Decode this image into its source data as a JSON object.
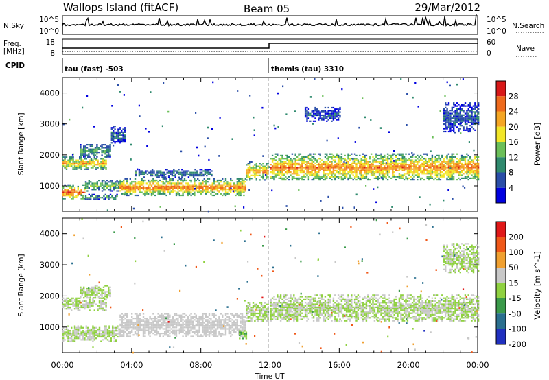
{
  "header": {
    "site": "Wallops Island (fitACF)",
    "beam": "Beam 05",
    "date": "29/Mar/2012"
  },
  "status_panels": {
    "nsky_label": "N.Sky",
    "nsky_ticks": [
      "10^5",
      "10^0"
    ],
    "nsearch_label": "N.Search",
    "nsearch_ticks": [
      "10^5",
      "10^0"
    ],
    "freq_label_1": "Freq.",
    "freq_label_2": "[MHz]",
    "freq_ticks": [
      "18",
      "8"
    ],
    "nave_label": "Nave",
    "nave_ticks": [
      "60",
      "0"
    ],
    "cpid_label": "CPID",
    "cpid_segments": [
      {
        "name": "tau (fast) -503",
        "start_hour": 0
      },
      {
        "name": "themis (tau) 3310",
        "start_hour": 12
      }
    ]
  },
  "chart_data": [
    {
      "type": "heatmap",
      "title": "",
      "xlabel": "Time UT",
      "ylabel": "Slant Range [km]",
      "x_ticks": [
        "00:00",
        "04:00",
        "08:00",
        "12:00",
        "16:00",
        "20:00",
        "00:00"
      ],
      "x_range_hours": [
        0,
        24
      ],
      "y_ticks": [
        1000,
        2000,
        3000,
        4000
      ],
      "ylim": [
        180,
        4500
      ],
      "colorbar": {
        "label": "Power [dB]",
        "ticks": [
          "28",
          "24",
          "20",
          "16",
          "12",
          "8",
          "4"
        ],
        "range": [
          0,
          32
        ],
        "colors": [
          "#0000e0",
          "#2a4ea8",
          "#2f8a6e",
          "#6bbf59",
          "#f2e627",
          "#f5a623",
          "#ef6a1c",
          "#d81818"
        ]
      },
      "echo_bands": [
        {
          "t0": 0.0,
          "t1": 2.5,
          "r0": 1550,
          "r1": 1950,
          "level": 18
        },
        {
          "t0": 1.0,
          "t1": 2.8,
          "r0": 1950,
          "r1": 2350,
          "level": 10
        },
        {
          "t0": 2.8,
          "t1": 3.6,
          "r0": 2400,
          "r1": 2950,
          "level": 6
        },
        {
          "t0": 0.0,
          "t1": 1.3,
          "r0": 580,
          "r1": 1050,
          "level": 22
        },
        {
          "t0": 1.3,
          "t1": 3.3,
          "r0": 850,
          "r1": 1200,
          "level": 12
        },
        {
          "t0": 1.3,
          "t1": 3.2,
          "r0": 560,
          "r1": 740,
          "level": 10
        },
        {
          "t0": 3.3,
          "t1": 10.6,
          "r0": 700,
          "r1": 1250,
          "level": 20
        },
        {
          "t0": 4.2,
          "t1": 8.6,
          "r0": 1300,
          "r1": 1550,
          "level": 8
        },
        {
          "t0": 10.6,
          "t1": 11.9,
          "r0": 1200,
          "r1": 1800,
          "level": 18
        },
        {
          "t0": 12.0,
          "t1": 24.0,
          "r0": 1180,
          "r1": 2050,
          "level": 20
        },
        {
          "t0": 14.0,
          "t1": 16.0,
          "r0": 3100,
          "r1": 3550,
          "level": 5
        },
        {
          "t0": 22.0,
          "t1": 24.0,
          "r0": 2750,
          "r1": 3700,
          "level": 6
        }
      ]
    },
    {
      "type": "heatmap",
      "title": "",
      "xlabel": "Time UT",
      "ylabel": "Slant Range [km]",
      "x_ticks": [
        "00:00",
        "04:00",
        "08:00",
        "12:00",
        "16:00",
        "20:00",
        "00:00"
      ],
      "x_range_hours": [
        0,
        24
      ],
      "y_ticks": [
        1000,
        2000,
        3000,
        4000
      ],
      "ylim": [
        180,
        4500
      ],
      "colorbar": {
        "label": "Velocity [m s^-1]",
        "ticks": [
          "200",
          "100",
          "50",
          "15",
          "-15",
          "-50",
          "-100",
          "-200"
        ],
        "range": [
          -250,
          250
        ],
        "colors": [
          "#2030c0",
          "#2a6f8f",
          "#3a9a4a",
          "#8fd140",
          "#c8c8c8",
          "#f0a030",
          "#f05818",
          "#e01818"
        ]
      },
      "echo_bands": [
        {
          "t0": 0.0,
          "t1": 2.5,
          "r0": 1550,
          "r1": 1950,
          "level": 0
        },
        {
          "t0": 1.0,
          "t1": 2.8,
          "r0": 1950,
          "r1": 2350,
          "level": 0
        },
        {
          "t0": 0.0,
          "t1": 3.3,
          "r0": 560,
          "r1": 1050,
          "level": 0
        },
        {
          "t0": 3.3,
          "t1": 10.6,
          "r0": 700,
          "r1": 1450,
          "level": 40
        },
        {
          "t0": 10.6,
          "t1": 11.9,
          "r0": 1200,
          "r1": 1800,
          "level": 0
        },
        {
          "t0": 10.2,
          "t1": 10.6,
          "r0": 650,
          "r1": 900,
          "level": -60
        },
        {
          "t0": 12.0,
          "t1": 24.0,
          "r0": 1180,
          "r1": 2050,
          "level": 0
        },
        {
          "t0": 22.0,
          "t1": 24.0,
          "r0": 2750,
          "r1": 3700,
          "level": 0
        }
      ]
    }
  ]
}
